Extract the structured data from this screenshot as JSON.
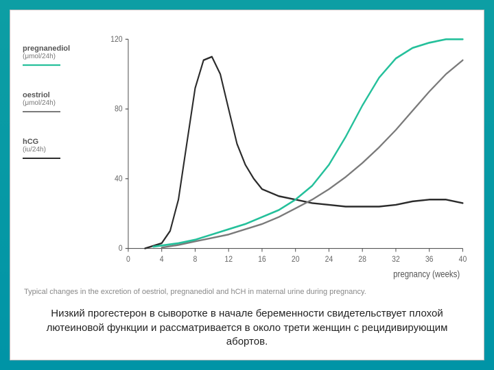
{
  "slide": {
    "bg_gradient_top": "#0d9ea4",
    "bg_gradient_bottom": "#0094a6",
    "inner_bg": "#ffffff"
  },
  "legend": {
    "items": [
      {
        "name": "pregnanediol",
        "unit": "(μmol/24h)",
        "color": "#25c09b",
        "stroke_width": 2.2
      },
      {
        "name": "oestriol",
        "unit": "(μmol/24h)",
        "color": "#7a7a7a",
        "stroke_width": 2.0
      },
      {
        "name": "hCG",
        "unit": "(iu/24h)",
        "color": "#2b2b2b",
        "stroke_width": 2.0
      }
    ]
  },
  "chart": {
    "type": "line",
    "xlim": [
      0,
      40
    ],
    "ylim": [
      0,
      120
    ],
    "xticks": [
      0,
      4,
      8,
      12,
      16,
      20,
      24,
      28,
      32,
      36,
      40
    ],
    "yticks": [
      0,
      40,
      80,
      120
    ],
    "xlabel": "pregnancy (weeks)",
    "axis_color": "#555555",
    "tick_font_size": 10,
    "label_font_size": 11,
    "background": "#ffffff",
    "series": {
      "pregnanediol": {
        "color": "#25c09b",
        "width": 2.2,
        "points": [
          [
            3,
            1
          ],
          [
            6,
            3
          ],
          [
            8,
            5
          ],
          [
            10,
            8
          ],
          [
            12,
            11
          ],
          [
            14,
            14
          ],
          [
            16,
            18
          ],
          [
            18,
            22
          ],
          [
            20,
            28
          ],
          [
            22,
            36
          ],
          [
            24,
            48
          ],
          [
            26,
            64
          ],
          [
            28,
            82
          ],
          [
            30,
            98
          ],
          [
            32,
            109
          ],
          [
            34,
            115
          ],
          [
            36,
            118
          ],
          [
            38,
            120
          ],
          [
            40,
            120
          ]
        ]
      },
      "oestriol": {
        "color": "#7a7a7a",
        "width": 2.0,
        "points": [
          [
            4,
            0.5
          ],
          [
            6,
            2
          ],
          [
            8,
            4
          ],
          [
            10,
            6
          ],
          [
            12,
            8
          ],
          [
            14,
            11
          ],
          [
            16,
            14
          ],
          [
            18,
            18
          ],
          [
            20,
            23
          ],
          [
            22,
            28
          ],
          [
            24,
            34
          ],
          [
            26,
            41
          ],
          [
            28,
            49
          ],
          [
            30,
            58
          ],
          [
            32,
            68
          ],
          [
            34,
            79
          ],
          [
            36,
            90
          ],
          [
            38,
            100
          ],
          [
            40,
            108
          ]
        ]
      },
      "hcg": {
        "color": "#2b2b2b",
        "width": 2.0,
        "points": [
          [
            2,
            0
          ],
          [
            4,
            3
          ],
          [
            5,
            10
          ],
          [
            6,
            28
          ],
          [
            7,
            60
          ],
          [
            8,
            92
          ],
          [
            9,
            108
          ],
          [
            10,
            110
          ],
          [
            11,
            100
          ],
          [
            12,
            80
          ],
          [
            13,
            60
          ],
          [
            14,
            48
          ],
          [
            15,
            40
          ],
          [
            16,
            34
          ],
          [
            18,
            30
          ],
          [
            20,
            28
          ],
          [
            22,
            26
          ],
          [
            24,
            25
          ],
          [
            26,
            24
          ],
          [
            28,
            24
          ],
          [
            30,
            24
          ],
          [
            32,
            25
          ],
          [
            34,
            27
          ],
          [
            36,
            28
          ],
          [
            38,
            28
          ],
          [
            40,
            26
          ]
        ]
      }
    }
  },
  "caption": "Typical changes in the excretion of oestriol, pregnanediol and hCH in maternal urine during pregnancy.",
  "footer": "Низкий прогестерон в сыворотке в начале беременности свидетельствует плохой лютеиновой функции и рассматривается в около трети женщин с рецидивирующим абортов."
}
